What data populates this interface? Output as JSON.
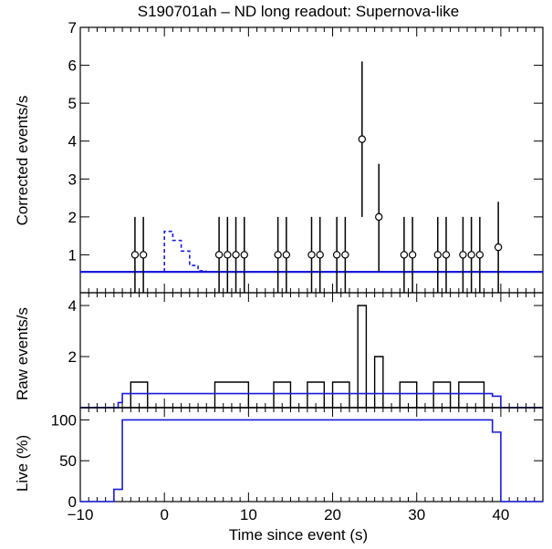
{
  "chart_data": {
    "type": "scatter",
    "title": "S190701ah – ND long readout: Supernova-like",
    "xlabel": "Time since event (s)",
    "xlim": [
      -10,
      45
    ],
    "x_ticks": [
      -10,
      0,
      10,
      20,
      30,
      40
    ],
    "colors": {
      "axis": "#000000",
      "fit": "#1a1adc",
      "points": "#000000",
      "marker_fill": "#ffffff"
    },
    "panels": [
      {
        "id": "corrected",
        "ylabel": "Corrected events/s",
        "ylim": [
          0,
          7
        ],
        "y_ticks": [
          1,
          2,
          3,
          4,
          5,
          6,
          7
        ],
        "points": [
          {
            "x": -3.5,
            "y": 1.0,
            "lo": 0.0,
            "hi": 2.0
          },
          {
            "x": -2.5,
            "y": 1.0,
            "lo": 0.0,
            "hi": 2.0
          },
          {
            "x": 6.5,
            "y": 1.0,
            "lo": 0.0,
            "hi": 2.0
          },
          {
            "x": 7.5,
            "y": 1.0,
            "lo": 0.0,
            "hi": 2.0
          },
          {
            "x": 8.5,
            "y": 1.0,
            "lo": 0.0,
            "hi": 2.0
          },
          {
            "x": 9.5,
            "y": 1.0,
            "lo": 0.0,
            "hi": 2.0
          },
          {
            "x": 13.5,
            "y": 1.0,
            "lo": 0.0,
            "hi": 2.0
          },
          {
            "x": 14.5,
            "y": 1.0,
            "lo": 0.0,
            "hi": 2.0
          },
          {
            "x": 17.5,
            "y": 1.0,
            "lo": 0.0,
            "hi": 2.0
          },
          {
            "x": 18.5,
            "y": 1.0,
            "lo": 0.0,
            "hi": 2.0
          },
          {
            "x": 20.5,
            "y": 1.0,
            "lo": 0.0,
            "hi": 2.0
          },
          {
            "x": 21.5,
            "y": 1.0,
            "lo": 0.0,
            "hi": 2.0
          },
          {
            "x": 23.5,
            "y": 4.05,
            "lo": 2.0,
            "hi": 6.1
          },
          {
            "x": 25.5,
            "y": 2.0,
            "lo": 0.55,
            "hi": 3.4
          },
          {
            "x": 28.5,
            "y": 1.0,
            "lo": 0.0,
            "hi": 2.0
          },
          {
            "x": 29.5,
            "y": 1.0,
            "lo": 0.0,
            "hi": 2.0
          },
          {
            "x": 32.5,
            "y": 1.0,
            "lo": 0.0,
            "hi": 2.0
          },
          {
            "x": 33.5,
            "y": 1.0,
            "lo": 0.0,
            "hi": 2.0
          },
          {
            "x": 35.5,
            "y": 1.0,
            "lo": 0.0,
            "hi": 2.0
          },
          {
            "x": 36.5,
            "y": 1.0,
            "lo": 0.0,
            "hi": 2.0
          },
          {
            "x": 37.5,
            "y": 1.0,
            "lo": 0.0,
            "hi": 2.0
          },
          {
            "x": 39.7,
            "y": 1.2,
            "lo": 0.0,
            "hi": 2.4
          }
        ],
        "background_level": 0.55,
        "signal_model_dashed": [
          {
            "x0": 0.0,
            "x1": 1.0,
            "y": 1.62
          },
          {
            "x0": 1.0,
            "x1": 2.0,
            "y": 1.38
          },
          {
            "x0": 2.0,
            "x1": 3.0,
            "y": 1.1
          },
          {
            "x0": 3.0,
            "x1": 4.0,
            "y": 0.72
          },
          {
            "x0": 4.0,
            "x1": 5.0,
            "y": 0.58
          }
        ]
      },
      {
        "id": "raw",
        "ylabel": "Raw events/s",
        "ylim": [
          0,
          4.5
        ],
        "y_ticks": [
          2,
          4
        ],
        "raw_hist": [
          {
            "x0": -4,
            "x1": -2,
            "y": 1
          },
          {
            "x0": 6,
            "x1": 10,
            "y": 1
          },
          {
            "x0": 13,
            "x1": 15,
            "y": 1
          },
          {
            "x0": 17,
            "x1": 19,
            "y": 1
          },
          {
            "x0": 20,
            "x1": 22,
            "y": 1
          },
          {
            "x0": 23,
            "x1": 24,
            "y": 4
          },
          {
            "x0": 25,
            "x1": 26,
            "y": 2
          },
          {
            "x0": 28,
            "x1": 30,
            "y": 1
          },
          {
            "x0": 32,
            "x1": 34,
            "y": 1
          },
          {
            "x0": 35,
            "x1": 38,
            "y": 1
          }
        ],
        "background_steps": [
          {
            "x0": -10,
            "x1": -5.5,
            "y": 0.0
          },
          {
            "x0": -5.5,
            "x1": -5.0,
            "y": 0.2
          },
          {
            "x0": -5.0,
            "x1": 39.0,
            "y": 0.55
          },
          {
            "x0": 39.0,
            "x1": 40.0,
            "y": 0.45
          },
          {
            "x0": 40.0,
            "x1": 45,
            "y": 0.0
          }
        ]
      },
      {
        "id": "live",
        "ylabel": "Live (%)",
        "ylim": [
          0,
          115
        ],
        "y_ticks": [
          0,
          50,
          100
        ],
        "live_steps": [
          {
            "x0": -10,
            "x1": -6,
            "y": 0
          },
          {
            "x0": -6,
            "x1": -5,
            "y": 15
          },
          {
            "x0": -5,
            "x1": 39,
            "y": 100
          },
          {
            "x0": 39,
            "x1": 40,
            "y": 85
          },
          {
            "x0": 40,
            "x1": 45,
            "y": 0
          }
        ]
      }
    ]
  }
}
